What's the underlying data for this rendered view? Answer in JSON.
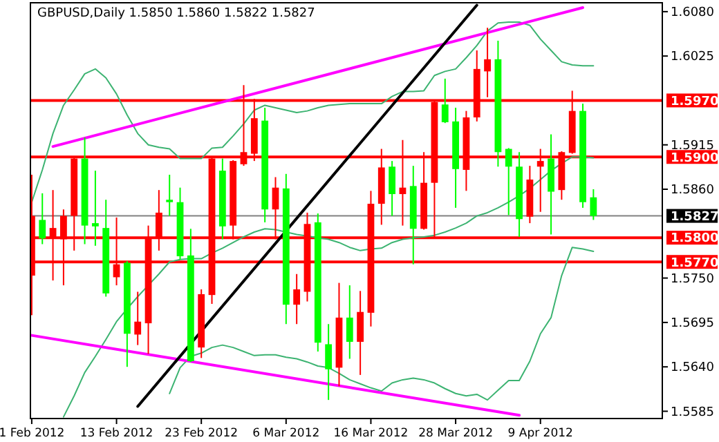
{
  "chart_data": {
    "type": "candlestick",
    "title": "GBPUSD,Daily  1.5850 1.5860 1.5822 1.5827",
    "categories": [
      "1 Feb 2012",
      null,
      null,
      null,
      null,
      null,
      null,
      null,
      "13 Feb 2012",
      null,
      null,
      null,
      null,
      null,
      null,
      null,
      "23 Feb 2012",
      null,
      null,
      null,
      null,
      null,
      null,
      null,
      "6 Mar 2012",
      null,
      null,
      null,
      null,
      null,
      null,
      null,
      "16 Mar 2012",
      null,
      null,
      null,
      null,
      null,
      null,
      null,
      "28 Mar 2012",
      null,
      null,
      null,
      null,
      null,
      null,
      null,
      "9 Apr 2012",
      null,
      null,
      null,
      null,
      null
    ],
    "ohlc": [
      [
        1.5753,
        1.5878,
        1.5704,
        1.5827
      ],
      [
        1.5822,
        1.5855,
        1.5792,
        1.5799
      ],
      [
        1.5799,
        1.5859,
        1.5747,
        1.5812
      ],
      [
        1.5798,
        1.5835,
        1.5741,
        1.5827
      ],
      [
        1.5827,
        1.5901,
        1.5784,
        1.5898
      ],
      [
        1.5898,
        1.5924,
        1.5792,
        1.5815
      ],
      [
        1.5818,
        1.5883,
        1.579,
        1.5814
      ],
      [
        1.5812,
        1.5847,
        1.5727,
        1.5731
      ],
      [
        1.5751,
        1.5825,
        1.5741,
        1.5767
      ],
      [
        1.5769,
        1.5771,
        1.564,
        1.5681
      ],
      [
        1.568,
        1.5733,
        1.5667,
        1.5696
      ],
      [
        1.5694,
        1.5815,
        1.5656,
        1.5801
      ],
      [
        1.5799,
        1.5859,
        1.5784,
        1.5831
      ],
      [
        1.5847,
        1.5878,
        1.5827,
        1.5844
      ],
      [
        1.5844,
        1.5862,
        1.5773,
        1.5777
      ],
      [
        1.5778,
        1.5811,
        1.5646,
        1.5647
      ],
      [
        1.5664,
        1.5736,
        1.5651,
        1.573
      ],
      [
        1.5729,
        1.5899,
        1.5718,
        1.5898
      ],
      [
        1.5883,
        1.5898,
        1.5798,
        1.5814
      ],
      [
        1.5815,
        1.5896,
        1.5798,
        1.5895
      ],
      [
        1.5891,
        1.5989,
        1.5889,
        1.5906
      ],
      [
        1.5904,
        1.5972,
        1.5895,
        1.5948
      ],
      [
        1.5945,
        1.5961,
        1.5819,
        1.5835
      ],
      [
        1.5835,
        1.5875,
        1.5798,
        1.5862
      ],
      [
        1.5861,
        1.5879,
        1.5693,
        1.5717
      ],
      [
        1.5717,
        1.5755,
        1.5693,
        1.5736
      ],
      [
        1.5733,
        1.5831,
        1.5721,
        1.5817
      ],
      [
        1.5819,
        1.583,
        1.5659,
        1.567
      ],
      [
        1.5668,
        1.5693,
        1.5599,
        1.5637
      ],
      [
        1.5639,
        1.5744,
        1.5616,
        1.5701
      ],
      [
        1.5701,
        1.5741,
        1.565,
        1.5671
      ],
      [
        1.5671,
        1.5734,
        1.563,
        1.5708
      ],
      [
        1.5707,
        1.5858,
        1.569,
        1.5842
      ],
      [
        1.5842,
        1.591,
        1.5816,
        1.5887
      ],
      [
        1.5888,
        1.5895,
        1.5827,
        1.5854
      ],
      [
        1.5854,
        1.5921,
        1.5815,
        1.5862
      ],
      [
        1.5864,
        1.5889,
        1.5767,
        1.5811
      ],
      [
        1.5811,
        1.5906,
        1.581,
        1.5868
      ],
      [
        1.5868,
        1.597,
        1.5799,
        1.5968
      ],
      [
        1.5965,
        1.5997,
        1.5942,
        1.5943
      ],
      [
        1.5944,
        1.5961,
        1.5837,
        1.5885
      ],
      [
        1.5884,
        1.5957,
        1.5858,
        1.5949
      ],
      [
        1.5949,
        1.6032,
        1.5944,
        1.6009
      ],
      [
        1.6006,
        1.606,
        1.5974,
        1.6021
      ],
      [
        1.6021,
        1.6044,
        1.5888,
        1.5906
      ],
      [
        1.591,
        1.5911,
        1.5828,
        1.5888
      ],
      [
        1.5888,
        1.5906,
        1.5801,
        1.5823
      ],
      [
        1.5826,
        1.5889,
        1.5818,
        1.5872
      ],
      [
        1.5888,
        1.591,
        1.5832,
        1.5895
      ],
      [
        1.5898,
        1.5928,
        1.5804,
        1.5857
      ],
      [
        1.5859,
        1.5907,
        1.5847,
        1.5906
      ],
      [
        1.5905,
        1.5982,
        1.5904,
        1.5957
      ],
      [
        1.5957,
        1.5966,
        1.5837,
        1.5844
      ],
      [
        1.585,
        1.586,
        1.5822,
        1.5827
      ]
    ],
    "colors": [
      "#ff0000",
      "#00ff00",
      "#ff0000",
      "#ff0000",
      "#ff0000",
      "#00ff00",
      "#00ff00",
      "#00ff00",
      "#ff0000",
      "#00ff00",
      "#ff0000",
      "#ff0000",
      "#ff0000",
      "#00ff00",
      "#00ff00",
      "#00ff00",
      "#ff0000",
      "#ff0000",
      "#00ff00",
      "#ff0000",
      "#ff0000",
      "#ff0000",
      "#00ff00",
      "#ff0000",
      "#00ff00",
      "#ff0000",
      "#ff0000",
      "#00ff00",
      "#00ff00",
      "#ff0000",
      "#00ff00",
      "#ff0000",
      "#ff0000",
      "#ff0000",
      "#00ff00",
      "#ff0000",
      "#00ff00",
      "#ff0000",
      "#ff0000",
      "#00ff00",
      "#00ff00",
      "#ff0000",
      "#ff0000",
      "#ff0000",
      "#00ff00",
      "#00ff00",
      "#00ff00",
      "#ff0000",
      "#ff0000",
      "#00ff00",
      "#ff0000",
      "#ff0000",
      "#00ff00",
      "#00ff00"
    ],
    "series": [
      {
        "type": "line",
        "color": "#3cb371",
        "values": [
          1.5844,
          1.5884,
          1.5929,
          1.5964,
          1.5983,
          1.6003,
          1.6009,
          1.5998,
          1.5978,
          1.5952,
          1.5929,
          1.5915,
          1.5912,
          1.591,
          1.5898,
          1.5898,
          1.5898,
          1.5911,
          1.5912,
          1.5926,
          1.5941,
          1.5958,
          1.5964,
          1.5961,
          1.5958,
          1.5955,
          1.5957,
          1.5961,
          1.5964,
          1.5965,
          1.5966,
          1.5966,
          1.5966,
          1.5966,
          1.5975,
          1.5981,
          1.5981,
          1.5982,
          1.6001,
          1.6006,
          1.6009,
          1.6023,
          1.6038,
          1.6056,
          1.6066,
          1.6067,
          1.6067,
          1.6063,
          1.6046,
          1.6032,
          1.6018,
          1.6014,
          1.6013,
          1.6013
        ]
      },
      {
        "type": "line",
        "color": "#3cb371",
        "values": [
          null,
          null,
          null,
          1.5578,
          1.5604,
          1.5633,
          1.5653,
          1.5674,
          1.5696,
          1.5712,
          1.5727,
          1.5741,
          1.5755,
          1.577,
          1.5773,
          1.5774,
          1.5774,
          1.5781,
          1.5787,
          1.5794,
          1.5801,
          1.5807,
          1.5811,
          1.581,
          1.5807,
          1.5804,
          1.5802,
          1.58,
          1.5798,
          1.5794,
          1.5788,
          1.5784,
          1.5786,
          1.5787,
          1.5794,
          1.5798,
          1.58,
          1.5801,
          1.5803,
          1.5807,
          1.5812,
          1.5818,
          1.5827,
          1.5831,
          1.5837,
          1.5844,
          1.5852,
          1.5861,
          1.5872,
          1.5883,
          1.5892,
          1.59,
          1.59,
          1.5899
        ]
      },
      {
        "type": "line",
        "color": "#3cb371",
        "values": [
          null,
          null,
          null,
          null,
          null,
          null,
          null,
          null,
          null,
          null,
          null,
          null,
          null,
          1.5607,
          1.5639,
          1.5653,
          1.5657,
          1.5664,
          1.5667,
          1.5664,
          1.5659,
          1.5654,
          1.5655,
          1.5655,
          1.5652,
          1.565,
          1.5646,
          1.5641,
          1.5639,
          1.5632,
          1.5624,
          1.5619,
          1.5614,
          1.561,
          1.562,
          1.5624,
          1.5626,
          1.5624,
          1.562,
          1.5613,
          1.5607,
          1.5604,
          1.5606,
          1.5599,
          1.5611,
          1.5623,
          1.5623,
          1.5647,
          1.5681,
          1.5701,
          1.5753,
          1.5788,
          1.5786,
          1.5783
        ]
      },
      {
        "type": "line",
        "color": "#ff00ff",
        "values": [
          null,
          null,
          1.5913,
          null,
          null,
          null,
          null,
          null,
          null,
          null,
          null,
          null,
          null,
          null,
          null,
          null,
          null,
          null,
          null,
          null,
          null,
          null,
          null,
          null,
          null,
          null,
          null,
          null,
          null,
          null,
          null,
          null,
          null,
          null,
          null,
          null,
          null,
          null,
          null,
          null,
          null,
          null,
          null,
          null,
          null,
          null,
          null,
          null,
          null,
          null,
          null,
          null,
          1.6085,
          null
        ]
      },
      {
        "type": "line",
        "color": "#ff00ff",
        "values": [
          1.5679,
          null,
          null,
          null,
          null,
          null,
          null,
          null,
          null,
          null,
          null,
          null,
          null,
          null,
          null,
          null,
          null,
          null,
          null,
          null,
          null,
          null,
          null,
          null,
          null,
          null,
          null,
          null,
          null,
          null,
          null,
          null,
          null,
          null,
          null,
          null,
          null,
          null,
          null,
          null,
          null,
          null,
          null,
          null,
          null,
          null,
          1.558,
          null,
          null,
          null,
          null,
          null,
          null,
          null
        ]
      },
      {
        "type": "line",
        "color": "#000000",
        "values": [
          null,
          null,
          null,
          null,
          null,
          null,
          null,
          null,
          null,
          null,
          1.5591,
          null,
          null,
          null,
          null,
          null,
          null,
          null,
          null,
          null,
          null,
          null,
          null,
          null,
          null,
          null,
          null,
          null,
          null,
          null,
          null,
          null,
          null,
          null,
          null,
          null,
          null,
          null,
          null,
          null,
          null,
          null,
          1.6088,
          null,
          null,
          null,
          null,
          null,
          null,
          null,
          null,
          null,
          null,
          null
        ]
      }
    ],
    "ylim": [
      1.5576,
      1.6091
    ],
    "yticks": [
      {
        "value": 1.608,
        "label": "1.6080"
      },
      {
        "value": 1.6025,
        "label": "1.6025"
      },
      {
        "value": 1.5915,
        "label": "1.5915"
      },
      {
        "value": 1.586,
        "label": "1.5860"
      },
      {
        "value": 1.575,
        "label": "1.5750"
      },
      {
        "value": 1.5695,
        "label": "1.5695"
      },
      {
        "value": 1.564,
        "label": "1.5640"
      },
      {
        "value": 1.5585,
        "label": "1.5585"
      }
    ],
    "ref_lines": [
      {
        "axis": "y",
        "value": 1.597,
        "label": "1.5970",
        "color": "#ff0000"
      },
      {
        "axis": "y",
        "value": 1.59,
        "label": "1.5900",
        "color": "#ff0000"
      },
      {
        "axis": "y",
        "value": 1.5827,
        "label": "1.5827",
        "color": "#808080"
      },
      {
        "axis": "y",
        "value": 1.58,
        "label": "1.5800",
        "color": "#ff0000"
      },
      {
        "axis": "y",
        "value": 1.577,
        "label": "1.5770",
        "color": "#ff0000"
      }
    ]
  }
}
